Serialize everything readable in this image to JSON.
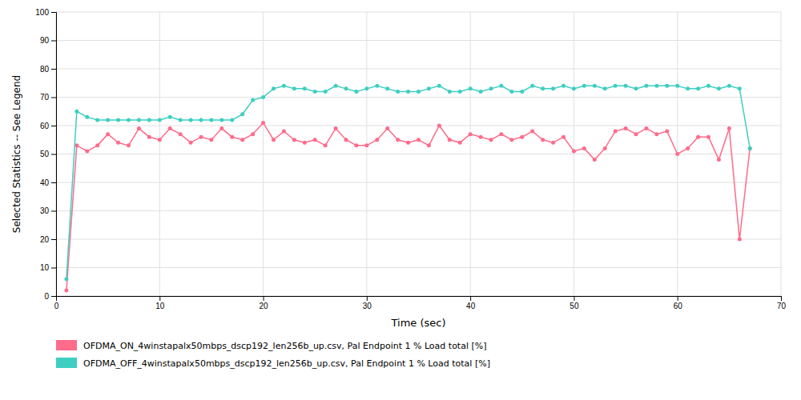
{
  "chart_data": {
    "type": "line",
    "xlabel": "Time (sec)",
    "ylabel": "Selected Statistics -- See Legend",
    "x": [
      1,
      2,
      3,
      4,
      5,
      6,
      7,
      8,
      9,
      10,
      11,
      12,
      13,
      14,
      15,
      16,
      17,
      18,
      19,
      20,
      21,
      22,
      23,
      24,
      25,
      26,
      27,
      28,
      29,
      30,
      31,
      32,
      33,
      34,
      35,
      36,
      37,
      38,
      39,
      40,
      41,
      42,
      43,
      44,
      45,
      46,
      47,
      48,
      49,
      50,
      51,
      52,
      53,
      54,
      55,
      56,
      57,
      58,
      59,
      60,
      61,
      62,
      63,
      64,
      65,
      66,
      67
    ],
    "series": [
      {
        "name": "OFDMA_ON_4winstapalx50mbps_dscp192_len256b_up.csv, Pal Endpoint 1 % Load total [%]",
        "color": "#FF6B8A",
        "values": [
          2,
          53,
          51,
          53,
          57,
          54,
          53,
          59,
          56,
          55,
          59,
          57,
          54,
          56,
          55,
          59,
          56,
          55,
          57,
          61,
          55,
          58,
          55,
          54,
          55,
          53,
          59,
          55,
          53,
          53,
          55,
          59,
          55,
          54,
          55,
          53,
          60,
          55,
          54,
          57,
          56,
          55,
          57,
          55,
          56,
          58,
          55,
          54,
          56,
          51,
          52,
          48,
          52,
          58,
          59,
          57,
          59,
          57,
          58,
          50,
          52,
          56,
          56,
          48,
          59,
          20,
          52
        ]
      },
      {
        "name": "OFDMA_OFF_4winstapalx50mbps_dscp192_len256b_up.csv, Pal Endpoint 1 % Load total [%]",
        "color": "#3ECFC0",
        "values": [
          6,
          65,
          63,
          62,
          62,
          62,
          62,
          62,
          62,
          62,
          63,
          62,
          62,
          62,
          62,
          62,
          62,
          64,
          69,
          70,
          73,
          74,
          73,
          73,
          72,
          72,
          74,
          73,
          72,
          73,
          74,
          73,
          72,
          72,
          72,
          73,
          74,
          72,
          72,
          73,
          72,
          73,
          74,
          72,
          72,
          74,
          73,
          73,
          74,
          73,
          74,
          74,
          73,
          74,
          74,
          73,
          74,
          74,
          74,
          74,
          73,
          73,
          74,
          73,
          74,
          73,
          52
        ]
      }
    ],
    "xlim": [
      0,
      70
    ],
    "ylim": [
      0,
      100
    ],
    "xticks": [
      0,
      10,
      20,
      30,
      40,
      50,
      60,
      70
    ],
    "yticks": [
      0,
      10,
      20,
      30,
      40,
      50,
      60,
      70,
      80,
      90,
      100
    ],
    "grid": true,
    "marker": "circle",
    "legend": "bottom"
  }
}
